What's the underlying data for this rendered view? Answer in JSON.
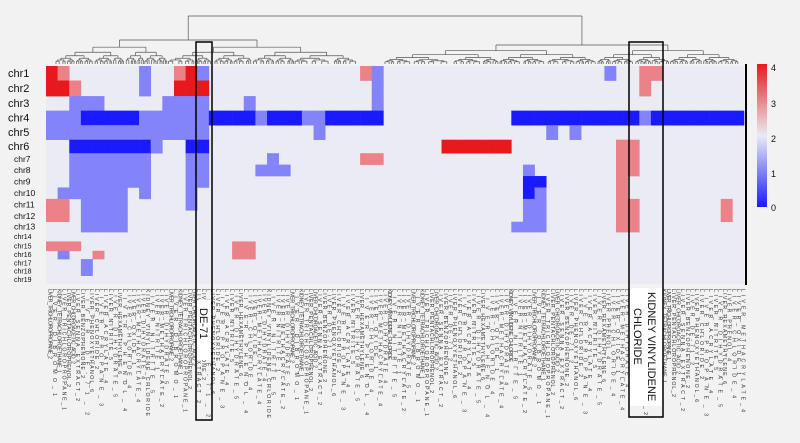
{
  "colors": {
    "low": "#1a1aff",
    "mid": "#ebebf4",
    "high": "#e8191c",
    "background": "#f2f2f2",
    "bracket": "#000000"
  },
  "colorbar": {
    "ticks": [
      "0",
      "1",
      "2",
      "3",
      "4"
    ]
  },
  "callouts": {
    "de71": "DE-71",
    "kvc_line1": "KIDNEY VINYLIDENE",
    "kvc_line2": "CHLORIDE"
  },
  "chart_data": {
    "type": "heatmap",
    "rows": [
      "chr1",
      "chr2",
      "chr3",
      "chr4",
      "chr5",
      "chr6",
      "chr7",
      "chr8",
      "chr9",
      "chr10",
      "chr11",
      "chr12",
      "chr13",
      "chr14",
      "chr15",
      "chr16",
      "chr17",
      "chr18",
      "chr19"
    ],
    "color_range": [
      0,
      4
    ],
    "colorbar_ticks": [
      0,
      1,
      2,
      3,
      4
    ],
    "highlighted_columns": [
      "DE-71",
      "KIDNEY VINYLIDENE CHLORIDE"
    ],
    "column_labels_visible": [
      "LIVER_TRICHLOROPROPANE_2",
      "LIVER_DIBROMO_1",
      "KIDNEY_TETRACHLOROETHANE_1",
      "LIVER_TRICHLOROPROPANE_1",
      "LIVER_PENTACHLOROPHENOL_2",
      "LIVER_CHLOROACETIC_ACID_2",
      "LIVER_SENNA_EXTRACT_2",
      "LIVER_BENZOPHENONE_2",
      "LIVER_DE-71_2",
      "LIVER_PHENOXYETHANOL_6",
      "LIVER_CHLORIDE_2",
      "LIVER_PROPANE_3",
      "LIVER_ACRYLATE_4",
      "LIVER_NITRITE_5",
      "LIVER_DIHYDRATE_5",
      "LIVER_HEXAMETHYLENE_6",
      "LIVER_PHENOL_4",
      "LIVER_CHLORIDE_4",
      "LIVER_OXIDE_1",
      "LIVER_METHACRYLATE_4",
      "LIVER_DIHYDRATE_4",
      "KIDNEY_VINYLIDENE_CHLORIDE",
      "LIVER_NITRITE_5",
      "LIVER_NITRITE_1",
      "LIVER_METHACRYLATE_2",
      "LIVER_DIHYDRATE_5"
    ],
    "values": [
      [
        4,
        3,
        2,
        2,
        2,
        2,
        2,
        2,
        1,
        2,
        2,
        3,
        4,
        1,
        2,
        2,
        2,
        2,
        2,
        2,
        2,
        2,
        2,
        2,
        2,
        2,
        2,
        3,
        1,
        2,
        2,
        2,
        2,
        2,
        2,
        2,
        2,
        2,
        2,
        2,
        2,
        2,
        2,
        2,
        2,
        2,
        2,
        2,
        1,
        2,
        2,
        3,
        3,
        2,
        2,
        2,
        2,
        2,
        2,
        2
      ],
      [
        4,
        4,
        3,
        2,
        2,
        2,
        2,
        2,
        1,
        2,
        2,
        4,
        4,
        4,
        2,
        2,
        2,
        2,
        2,
        2,
        2,
        2,
        2,
        2,
        2,
        2,
        2,
        2,
        1,
        2,
        2,
        2,
        2,
        2,
        2,
        2,
        2,
        2,
        2,
        2,
        2,
        2,
        2,
        2,
        2,
        2,
        2,
        2,
        2,
        2,
        2,
        3,
        2,
        2,
        2,
        2,
        2,
        2,
        2,
        2
      ],
      [
        2,
        2,
        1,
        1,
        1,
        2,
        2,
        2,
        2,
        2,
        1,
        1,
        1,
        1,
        2,
        2,
        2,
        1,
        2,
        2,
        2,
        2,
        2,
        2,
        2,
        2,
        2,
        2,
        1,
        2,
        2,
        2,
        2,
        2,
        2,
        2,
        2,
        2,
        2,
        2,
        2,
        2,
        2,
        2,
        2,
        2,
        2,
        2,
        2,
        2,
        2,
        2,
        2,
        2,
        2,
        2,
        2,
        2,
        2,
        2
      ],
      [
        1,
        1,
        1,
        0,
        0,
        0,
        0,
        0,
        1,
        1,
        1,
        1,
        1,
        1,
        0,
        0,
        0,
        0,
        1,
        0,
        0,
        0,
        1,
        1,
        0,
        0,
        0,
        0,
        0,
        2,
        2,
        2,
        2,
        2,
        2,
        2,
        2,
        2,
        2,
        2,
        0,
        0,
        0,
        0,
        0,
        0,
        0,
        0,
        0,
        0,
        0,
        1,
        0,
        0,
        0,
        0,
        0,
        0,
        0,
        0
      ],
      [
        1,
        1,
        1,
        1,
        1,
        1,
        1,
        1,
        1,
        1,
        1,
        1,
        1,
        1,
        2,
        2,
        2,
        2,
        2,
        2,
        2,
        2,
        2,
        1,
        2,
        2,
        2,
        2,
        2,
        2,
        2,
        2,
        2,
        2,
        2,
        2,
        2,
        2,
        2,
        2,
        2,
        2,
        2,
        1,
        2,
        1,
        2,
        2,
        2,
        2,
        2,
        2,
        2,
        2,
        2,
        2,
        2,
        2,
        2,
        2
      ],
      [
        2,
        2,
        0,
        0,
        0,
        0,
        0,
        0,
        0,
        1,
        2,
        2,
        0,
        0,
        2,
        2,
        2,
        2,
        2,
        2,
        2,
        2,
        2,
        2,
        2,
        2,
        2,
        2,
        2,
        2,
        2,
        2,
        2,
        2,
        4,
        4,
        4,
        4,
        4,
        4,
        2,
        2,
        2,
        2,
        2,
        2,
        2,
        2,
        2,
        3,
        3,
        2,
        2,
        2,
        2,
        2,
        2,
        2,
        2,
        2
      ],
      [
        2,
        2,
        1,
        1,
        1,
        1,
        1,
        1,
        1,
        2,
        2,
        2,
        1,
        1,
        2,
        2,
        2,
        2,
        2,
        1,
        2,
        2,
        2,
        2,
        2,
        2,
        2,
        3,
        3,
        2,
        2,
        2,
        2,
        2,
        2,
        2,
        2,
        2,
        2,
        2,
        2,
        2,
        2,
        2,
        2,
        2,
        2,
        2,
        2,
        3,
        3,
        2,
        2,
        2,
        2,
        2,
        2,
        2,
        2,
        2
      ],
      [
        2,
        2,
        1,
        1,
        1,
        1,
        1,
        1,
        1,
        2,
        2,
        2,
        1,
        1,
        2,
        2,
        2,
        2,
        1,
        1,
        1,
        2,
        2,
        2,
        2,
        2,
        2,
        2,
        2,
        2,
        2,
        2,
        2,
        2,
        2,
        2,
        2,
        2,
        2,
        2,
        2,
        1,
        2,
        2,
        2,
        2,
        2,
        2,
        2,
        3,
        3,
        2,
        2,
        2,
        2,
        2,
        2,
        2,
        2,
        2
      ],
      [
        2,
        2,
        1,
        1,
        1,
        1,
        1,
        1,
        1,
        2,
        2,
        2,
        1,
        1,
        2,
        2,
        2,
        2,
        2,
        2,
        2,
        2,
        2,
        2,
        2,
        2,
        2,
        2,
        2,
        2,
        2,
        2,
        2,
        2,
        2,
        2,
        2,
        2,
        2,
        2,
        2,
        0,
        0,
        2,
        2,
        2,
        2,
        2,
        2,
        3,
        2,
        2,
        2,
        2,
        2,
        2,
        2,
        2,
        2,
        2
      ],
      [
        2,
        1,
        1,
        1,
        1,
        1,
        1,
        2,
        1,
        2,
        2,
        2,
        1,
        2,
        2,
        2,
        2,
        2,
        2,
        2,
        2,
        2,
        2,
        2,
        2,
        2,
        2,
        2,
        2,
        2,
        2,
        2,
        2,
        2,
        2,
        2,
        2,
        2,
        2,
        2,
        2,
        0,
        1,
        2,
        2,
        2,
        2,
        2,
        2,
        3,
        2,
        2,
        2,
        2,
        2,
        2,
        2,
        2,
        2,
        2
      ],
      [
        3,
        3,
        2,
        1,
        1,
        1,
        1,
        2,
        2,
        2,
        2,
        2,
        1,
        2,
        2,
        2,
        2,
        2,
        2,
        2,
        2,
        2,
        2,
        2,
        2,
        2,
        2,
        2,
        2,
        2,
        2,
        2,
        2,
        2,
        2,
        2,
        2,
        2,
        2,
        2,
        2,
        1,
        1,
        2,
        2,
        2,
        2,
        2,
        2,
        3,
        3,
        2,
        2,
        2,
        2,
        2,
        2,
        2,
        3,
        2
      ],
      [
        3,
        3,
        2,
        1,
        1,
        1,
        1,
        2,
        2,
        2,
        2,
        2,
        2,
        2,
        2,
        2,
        2,
        2,
        2,
        2,
        2,
        2,
        2,
        2,
        2,
        2,
        2,
        2,
        2,
        2,
        2,
        2,
        2,
        2,
        2,
        2,
        2,
        2,
        2,
        2,
        2,
        1,
        1,
        2,
        2,
        2,
        2,
        2,
        2,
        3,
        3,
        2,
        2,
        2,
        2,
        2,
        2,
        2,
        3,
        2
      ],
      [
        2,
        2,
        2,
        1,
        1,
        1,
        1,
        2,
        2,
        2,
        2,
        2,
        2,
        2,
        2,
        2,
        2,
        2,
        2,
        2,
        2,
        2,
        2,
        2,
        2,
        2,
        2,
        2,
        2,
        2,
        2,
        2,
        2,
        2,
        2,
        2,
        2,
        2,
        2,
        2,
        1,
        1,
        1,
        2,
        2,
        2,
        2,
        2,
        2,
        3,
        3,
        2,
        2,
        2,
        2,
        2,
        2,
        2,
        2,
        2
      ],
      [
        2,
        2,
        2,
        2,
        2,
        2,
        2,
        2,
        2,
        2,
        2,
        2,
        2,
        2,
        2,
        2,
        2,
        2,
        2,
        2,
        2,
        2,
        2,
        2,
        2,
        2,
        2,
        2,
        2,
        2,
        2,
        2,
        2,
        2,
        2,
        2,
        2,
        2,
        2,
        2,
        2,
        2,
        2,
        2,
        2,
        2,
        2,
        2,
        2,
        2,
        2,
        2,
        2,
        2,
        2,
        2,
        2,
        2,
        2,
        2
      ],
      [
        3,
        3,
        3,
        2,
        2,
        2,
        2,
        2,
        2,
        2,
        2,
        2,
        2,
        2,
        2,
        2,
        3,
        3,
        2,
        2,
        2,
        2,
        2,
        2,
        2,
        2,
        2,
        2,
        2,
        2,
        2,
        2,
        2,
        2,
        2,
        2,
        2,
        2,
        2,
        2,
        2,
        2,
        2,
        2,
        2,
        2,
        2,
        2,
        2,
        2,
        2,
        2,
        2,
        2,
        2,
        2,
        2,
        2,
        2,
        2
      ],
      [
        2,
        1,
        2,
        2,
        3,
        2,
        2,
        2,
        2,
        2,
        2,
        2,
        2,
        2,
        2,
        2,
        3,
        3,
        2,
        2,
        2,
        2,
        2,
        2,
        2,
        2,
        2,
        2,
        2,
        2,
        2,
        2,
        2,
        2,
        2,
        2,
        2,
        2,
        2,
        2,
        2,
        2,
        2,
        2,
        2,
        2,
        2,
        2,
        2,
        2,
        2,
        2,
        2,
        2,
        2,
        2,
        2,
        2,
        2,
        2
      ],
      [
        2,
        2,
        2,
        1,
        2,
        2,
        2,
        2,
        2,
        2,
        2,
        2,
        2,
        2,
        2,
        2,
        2,
        2,
        2,
        2,
        2,
        2,
        2,
        2,
        2,
        2,
        2,
        2,
        2,
        2,
        2,
        2,
        2,
        2,
        2,
        2,
        2,
        2,
        2,
        2,
        2,
        2,
        2,
        2,
        2,
        2,
        2,
        2,
        2,
        2,
        2,
        2,
        2,
        2,
        2,
        2,
        2,
        2,
        2,
        2
      ],
      [
        2,
        2,
        2,
        1,
        2,
        2,
        2,
        2,
        2,
        2,
        2,
        2,
        2,
        2,
        2,
        2,
        2,
        2,
        2,
        2,
        2,
        2,
        2,
        2,
        2,
        2,
        2,
        2,
        2,
        2,
        2,
        2,
        2,
        2,
        2,
        2,
        2,
        2,
        2,
        2,
        2,
        2,
        2,
        2,
        2,
        2,
        2,
        2,
        2,
        2,
        2,
        2,
        2,
        2,
        2,
        2,
        2,
        2,
        2,
        2
      ],
      [
        2,
        2,
        2,
        2,
        2,
        2,
        2,
        2,
        2,
        2,
        2,
        2,
        2,
        2,
        2,
        2,
        2,
        2,
        2,
        2,
        2,
        2,
        2,
        2,
        2,
        2,
        2,
        2,
        2,
        2,
        2,
        2,
        2,
        2,
        2,
        2,
        2,
        2,
        2,
        2,
        2,
        2,
        2,
        2,
        2,
        2,
        2,
        2,
        2,
        2,
        2,
        2,
        2,
        2,
        2,
        2,
        2,
        2,
        2,
        2
      ]
    ]
  }
}
